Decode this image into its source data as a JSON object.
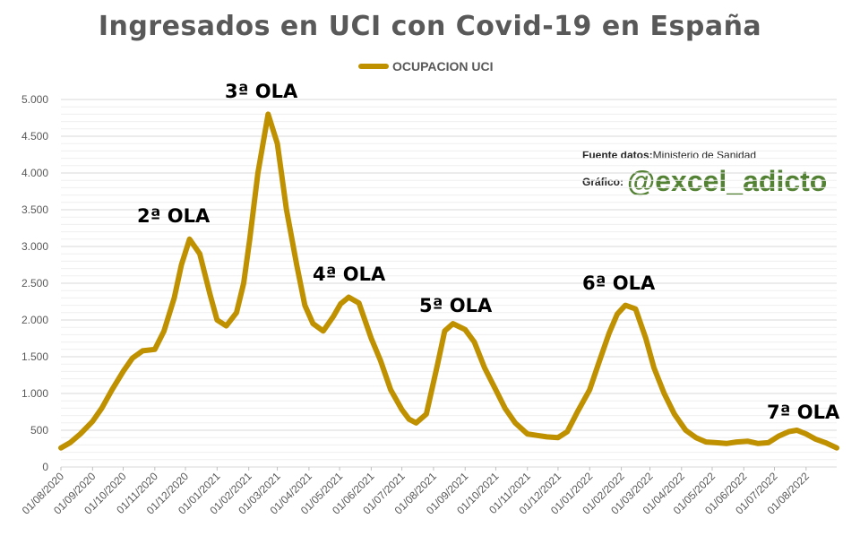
{
  "chart_data": {
    "type": "line",
    "title": "Ingresados en UCI con Covid-19 en España",
    "xlabel": "",
    "ylabel": "",
    "ylim": [
      0,
      5000
    ],
    "yticks": [
      0,
      500,
      1000,
      1500,
      2000,
      2500,
      3000,
      3500,
      4000,
      4500,
      5000
    ],
    "ytick_labels": [
      "0",
      "500",
      "1.000",
      "1.500",
      "2.000",
      "2.500",
      "3.000",
      "3.500",
      "4.000",
      "4.500",
      "5.000"
    ],
    "xlim": [
      "2020-08-01",
      "2022-08-31"
    ],
    "xticks": [
      "2020-08-01",
      "2020-09-01",
      "2020-10-01",
      "2020-11-01",
      "2020-12-01",
      "2021-01-01",
      "2021-02-01",
      "2021-03-01",
      "2021-04-01",
      "2021-05-01",
      "2021-06-01",
      "2021-07-01",
      "2021-08-01",
      "2021-09-01",
      "2021-10-01",
      "2021-11-01",
      "2021-12-01",
      "2022-01-01",
      "2022-02-01",
      "2022-03-01",
      "2022-04-01",
      "2022-05-01",
      "2022-06-01",
      "2022-07-01",
      "2022-08-01"
    ],
    "xtick_labels": [
      "01/08/2020",
      "01/09/2020",
      "01/10/2020",
      "01/11/2020",
      "01/12/2020",
      "01/01/2021",
      "01/02/2021",
      "01/03/2021",
      "01/04/2021",
      "01/05/2021",
      "01/06/2021",
      "01/07/2021",
      "01/08/2021",
      "01/09/2021",
      "01/10/2021",
      "01/11/2021",
      "01/12/2021",
      "01/01/2022",
      "01/02/2022",
      "01/03/2022",
      "01/04/2022",
      "01/05/2022",
      "01/06/2022",
      "01/07/2022",
      "01/08/2022"
    ],
    "grid": true,
    "legend": "top",
    "series": [
      {
        "name": "OCUPACION UCI",
        "color": "#bf9000",
        "x": [
          "2020-08-01",
          "2020-08-10",
          "2020-08-20",
          "2020-09-01",
          "2020-09-10",
          "2020-09-20",
          "2020-10-01",
          "2020-10-10",
          "2020-10-20",
          "2020-11-01",
          "2020-11-10",
          "2020-11-20",
          "2020-11-27",
          "2020-12-05",
          "2020-12-15",
          "2020-12-25",
          "2021-01-01",
          "2021-01-10",
          "2021-01-20",
          "2021-01-27",
          "2021-02-02",
          "2021-02-10",
          "2021-02-20",
          "2021-03-01",
          "2021-03-10",
          "2021-03-20",
          "2021-03-28",
          "2021-04-05",
          "2021-04-15",
          "2021-04-25",
          "2021-05-02",
          "2021-05-10",
          "2021-05-20",
          "2021-06-01",
          "2021-06-10",
          "2021-06-20",
          "2021-07-01",
          "2021-07-08",
          "2021-07-15",
          "2021-07-25",
          "2021-08-05",
          "2021-08-12",
          "2021-08-20",
          "2021-09-01",
          "2021-09-10",
          "2021-09-20",
          "2021-10-01",
          "2021-10-10",
          "2021-10-20",
          "2021-11-01",
          "2021-11-10",
          "2021-11-20",
          "2021-12-01",
          "2021-12-10",
          "2021-12-20",
          "2022-01-01",
          "2022-01-10",
          "2022-01-20",
          "2022-01-28",
          "2022-02-05",
          "2022-02-15",
          "2022-02-25",
          "2022-03-05",
          "2022-03-15",
          "2022-03-25",
          "2022-04-05",
          "2022-04-15",
          "2022-04-25",
          "2022-05-05",
          "2022-05-15",
          "2022-05-25",
          "2022-06-05",
          "2022-06-15",
          "2022-06-25",
          "2022-07-05",
          "2022-07-15",
          "2022-07-23",
          "2022-08-01",
          "2022-08-10",
          "2022-08-20",
          "2022-08-31"
        ],
        "values": [
          260,
          330,
          450,
          620,
          800,
          1050,
          1300,
          1480,
          1580,
          1600,
          1850,
          2300,
          2750,
          3100,
          2900,
          2350,
          2000,
          1920,
          2100,
          2500,
          3100,
          4000,
          4800,
          4400,
          3500,
          2750,
          2200,
          1950,
          1850,
          2050,
          2220,
          2310,
          2230,
          1750,
          1450,
          1050,
          780,
          650,
          600,
          720,
          1400,
          1850,
          1950,
          1870,
          1700,
          1350,
          1050,
          800,
          600,
          450,
          430,
          410,
          400,
          480,
          750,
          1050,
          1420,
          1820,
          2080,
          2200,
          2150,
          1750,
          1350,
          1000,
          720,
          500,
          400,
          340,
          330,
          320,
          340,
          350,
          320,
          330,
          420,
          480,
          500,
          450,
          380,
          330,
          260
        ]
      }
    ],
    "annotations": [
      "2ª OLA",
      "3ª OLA",
      "4ª OLA",
      "5ª OLA",
      "6ª OLA",
      "7ª OLA"
    ],
    "source_label": "Fuente datos:",
    "source_value": "Ministerio de Sanidad",
    "credit_label": "Gráfico:",
    "credit_handle": "@excel_adicto"
  }
}
